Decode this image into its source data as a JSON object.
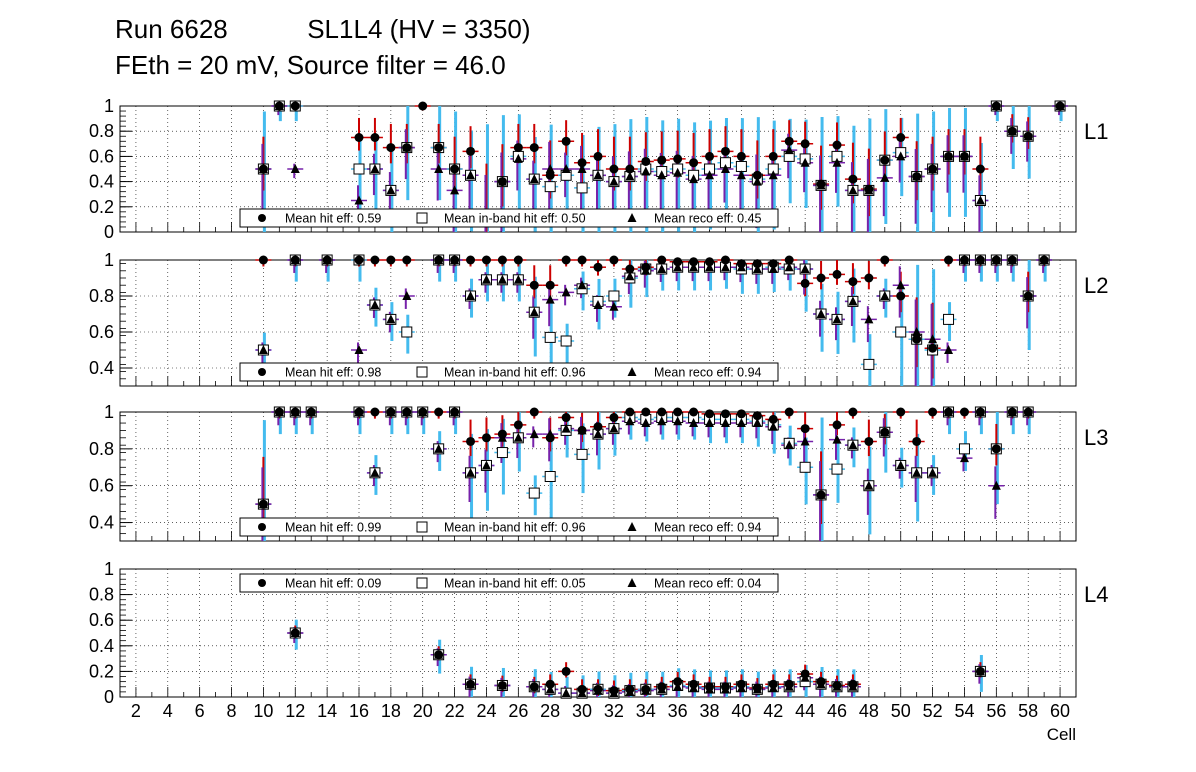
{
  "title": {
    "line1": "Run 6628           SL1L4 (HV = 3350)",
    "line2": "FEth = 20 mV, Source filter = 46.0"
  },
  "colors": {
    "hit": "#000000",
    "inband": "#ffffff",
    "reco": "#000000",
    "hit_err": "#cc0000",
    "inband_err": "#44bbee",
    "reco_err": "#7722aa"
  },
  "chart_data": [
    {
      "type": "scatter",
      "panel": "L1",
      "xlim": [
        1,
        61
      ],
      "ylim": [
        0,
        1
      ],
      "yticks": [
        0,
        0.2,
        0.4,
        0.6,
        0.8,
        1
      ],
      "grid": true,
      "legend": {
        "hit": "Mean hit  eff: 0.59",
        "inband": "Mean in-band hit eff: 0.50",
        "reco": "Mean reco eff: 0.45"
      },
      "cells": [
        10,
        11,
        12,
        16,
        17,
        18,
        19,
        20,
        21,
        22,
        23,
        24,
        25,
        26,
        27,
        28,
        29,
        30,
        31,
        32,
        33,
        34,
        35,
        36,
        37,
        38,
        39,
        40,
        41,
        42,
        43,
        44,
        45,
        46,
        47,
        48,
        49,
        50,
        51,
        52,
        53,
        54,
        55,
        56,
        57,
        58,
        60
      ],
      "series": [
        {
          "name": "Mean hit  eff",
          "values": [
            0.5,
            1,
            1,
            0.75,
            0.75,
            0.67,
            0.67,
            1,
            0.67,
            0.5,
            0.64,
            0.14,
            0.4,
            0.67,
            0.67,
            0.45,
            0.72,
            0.55,
            0.6,
            0.5,
            0.5,
            0.56,
            0.57,
            0.58,
            0.55,
            0.6,
            0.64,
            0.6,
            0.45,
            0.6,
            0.72,
            0.7,
            0.38,
            0.69,
            0.42,
            0.34,
            0.57,
            0.75,
            0.44,
            0.5,
            0.6,
            0.6,
            0.5,
            1,
            0.8,
            0.76,
            1
          ]
        },
        {
          "name": "Mean in-band hit eff",
          "values": [
            0.5,
            1,
            1,
            0.5,
            0.5,
            0.33,
            0.67,
            null,
            0.67,
            0.5,
            0.45,
            0.14,
            0.4,
            0.6,
            0.42,
            0.36,
            0.45,
            0.35,
            0.45,
            0.4,
            0.44,
            0.5,
            0.48,
            0.5,
            0.45,
            0.5,
            0.55,
            0.52,
            0.42,
            0.5,
            0.6,
            0.58,
            0.37,
            0.6,
            0.33,
            0.33,
            0.57,
            0.63,
            0.44,
            0.5,
            0.6,
            0.6,
            0.25,
            1,
            0.8,
            0.76,
            1
          ]
        },
        {
          "name": "Mean reco eff",
          "values": [
            0.5,
            1,
            0.5,
            0.25,
            0.5,
            0.33,
            0.67,
            null,
            0.5,
            0.33,
            0.45,
            0.14,
            0.4,
            0.58,
            0.42,
            0.5,
            0.5,
            0.5,
            0.45,
            0.4,
            0.44,
            0.48,
            0.45,
            0.47,
            0.42,
            0.45,
            0.5,
            0.45,
            0.4,
            0.45,
            0.65,
            0.55,
            0.37,
            0.55,
            0.33,
            0.33,
            0.43,
            0.6,
            0.44,
            0.5,
            0.6,
            0.6,
            0.25,
            1,
            0.8,
            0.76,
            1
          ]
        }
      ]
    },
    {
      "type": "scatter",
      "panel": "L2",
      "xlim": [
        1,
        61
      ],
      "ylim": [
        0.3,
        1
      ],
      "yticks": [
        0.4,
        0.6,
        0.8,
        1
      ],
      "grid": true,
      "legend": {
        "hit": "Mean hit  eff: 0.98",
        "inband": "Mean in-band hit eff: 0.96",
        "reco": "Mean reco eff: 0.94"
      },
      "cells": [
        10,
        12,
        14,
        16,
        17,
        18,
        19,
        21,
        22,
        23,
        24,
        25,
        26,
        27,
        28,
        29,
        30,
        31,
        32,
        33,
        34,
        35,
        36,
        37,
        38,
        39,
        40,
        41,
        42,
        43,
        44,
        45,
        46,
        47,
        48,
        49,
        50,
        51,
        52,
        53,
        54,
        55,
        56,
        57,
        58,
        59
      ],
      "series": [
        {
          "name": "Mean hit  eff",
          "values": [
            1,
            1,
            1,
            1,
            1,
            1,
            1,
            1,
            1,
            1,
            1,
            1,
            1,
            0.86,
            0.86,
            1,
            1,
            0.96,
            1,
            0.95,
            0.96,
            1,
            0.99,
            0.99,
            0.99,
            1,
            0.98,
            0.98,
            0.98,
            1,
            0.87,
            0.9,
            0.92,
            0.88,
            0.9,
            1,
            0.8,
            0.56,
            0.51,
            1,
            1,
            1,
            1,
            1,
            0.8,
            1
          ]
        },
        {
          "name": "Mean in-band hit eff",
          "values": [
            0.5,
            1,
            1,
            1,
            0.75,
            0.67,
            0.6,
            1,
            1,
            0.8,
            0.89,
            0.89,
            0.89,
            0.71,
            0.57,
            0.55,
            0.84,
            0.77,
            0.8,
            0.9,
            0.95,
            0.95,
            0.96,
            0.96,
            0.96,
            0.96,
            0.95,
            0.95,
            0.96,
            0.95,
            0.95,
            0.7,
            0.67,
            0.77,
            0.42,
            0.8,
            0.6,
            0.56,
            0.5,
            0.67,
            1,
            1,
            1,
            1,
            0.8,
            1
          ]
        },
        {
          "name": "Mean reco eff",
          "values": [
            0.5,
            1,
            1,
            0.5,
            0.75,
            0.67,
            0.8,
            1,
            1,
            0.8,
            0.89,
            0.89,
            0.89,
            0.71,
            0.78,
            0.82,
            0.86,
            0.75,
            0.74,
            0.91,
            0.94,
            0.95,
            0.96,
            0.96,
            0.96,
            0.96,
            0.96,
            0.95,
            0.95,
            0.96,
            0.95,
            0.7,
            0.67,
            0.77,
            0.67,
            0.8,
            0.86,
            0.6,
            0.56,
            0.5,
            1,
            1,
            1,
            1,
            0.8,
            1
          ]
        }
      ]
    },
    {
      "type": "scatter",
      "panel": "L3",
      "xlim": [
        1,
        61
      ],
      "ylim": [
        0.3,
        1
      ],
      "yticks": [
        0.4,
        0.6,
        0.8,
        1
      ],
      "grid": true,
      "legend": {
        "hit": "Mean hit  eff: 0.99",
        "inband": "Mean in-band hit eff: 0.96",
        "reco": "Mean reco eff: 0.94"
      },
      "cells": [
        10,
        11,
        12,
        13,
        16,
        17,
        18,
        19,
        20,
        21,
        22,
        23,
        24,
        25,
        26,
        27,
        28,
        29,
        30,
        31,
        32,
        33,
        34,
        35,
        36,
        37,
        38,
        39,
        40,
        41,
        42,
        43,
        44,
        45,
        46,
        47,
        48,
        49,
        50,
        51,
        52,
        53,
        54,
        55,
        56,
        57,
        58
      ],
      "series": [
        {
          "name": "Mean hit  eff",
          "values": [
            0.5,
            1,
            1,
            1,
            1,
            1,
            1,
            1,
            1,
            1,
            1,
            0.84,
            0.86,
            0.88,
            0.93,
            1,
            0.86,
            0.97,
            0.9,
            0.92,
            0.97,
            1,
            1,
            1,
            1,
            1,
            0.99,
            0.99,
            0.99,
            0.98,
            0.96,
            1,
            0.91,
            0.55,
            0.93,
            1,
            0.84,
            0.89,
            1,
            0.84,
            1,
            1,
            1,
            1,
            0.8,
            1,
            1
          ]
        },
        {
          "name": "Mean in-band hit eff",
          "values": [
            0.5,
            1,
            1,
            1,
            1,
            0.67,
            1,
            1,
            1,
            0.8,
            1,
            0.67,
            0.71,
            0.78,
            0.86,
            0.56,
            0.65,
            0.9,
            0.77,
            0.88,
            0.91,
            0.97,
            0.96,
            0.97,
            0.97,
            0.97,
            0.96,
            0.96,
            0.96,
            0.95,
            0.93,
            0.83,
            0.7,
            0.55,
            0.69,
            0.82,
            0.6,
            0.89,
            0.71,
            0.67,
            0.67,
            1,
            0.8,
            1,
            0.8,
            1,
            1
          ]
        },
        {
          "name": "Mean reco eff",
          "values": [
            0.5,
            1,
            1,
            1,
            1,
            0.67,
            1,
            1,
            1,
            0.8,
            1,
            0.67,
            0.71,
            0.86,
            0.86,
            0.88,
            0.88,
            0.91,
            0.9,
            0.88,
            0.91,
            0.95,
            0.94,
            0.95,
            0.95,
            0.94,
            0.94,
            0.94,
            0.94,
            0.94,
            0.92,
            0.82,
            0.84,
            0.55,
            0.85,
            0.82,
            0.6,
            0.89,
            0.71,
            0.67,
            0.67,
            1,
            0.75,
            1,
            0.6,
            1,
            1
          ]
        }
      ]
    },
    {
      "type": "scatter",
      "panel": "L4",
      "xlim": [
        1,
        61
      ],
      "ylim": [
        0,
        1
      ],
      "yticks": [
        0,
        0.2,
        0.4,
        0.6,
        0.8,
        1
      ],
      "xticks": [
        2,
        4,
        6,
        8,
        10,
        12,
        14,
        16,
        18,
        20,
        22,
        24,
        26,
        28,
        30,
        32,
        34,
        36,
        38,
        40,
        42,
        44,
        46,
        48,
        50,
        52,
        54,
        56,
        58,
        60
      ],
      "xlabel": "Cell",
      "grid": true,
      "legend": {
        "hit": "Mean hit  eff: 0.09",
        "inband": "Mean in-band hit eff: 0.05",
        "reco": "Mean reco eff: 0.04"
      },
      "cells": [
        12,
        21,
        23,
        25,
        27,
        28,
        29,
        30,
        31,
        32,
        33,
        34,
        35,
        36,
        37,
        38,
        39,
        40,
        41,
        42,
        43,
        44,
        45,
        46,
        47,
        55
      ],
      "series": [
        {
          "name": "Mean hit  eff",
          "values": [
            0.5,
            0.33,
            0.1,
            0.09,
            0.08,
            0.1,
            0.2,
            0.06,
            0.06,
            0.05,
            0.06,
            0.06,
            0.08,
            0.12,
            0.1,
            0.08,
            0.08,
            0.1,
            0.07,
            0.1,
            0.1,
            0.18,
            0.12,
            0.09,
            0.1,
            0.2
          ]
        },
        {
          "name": "Mean in-band hit eff",
          "values": [
            0.5,
            0.33,
            0.1,
            0.09,
            0.08,
            0.06,
            0.03,
            0.03,
            0.06,
            0.03,
            0.05,
            0.06,
            0.06,
            0.09,
            0.08,
            0.07,
            0.07,
            0.08,
            0.06,
            0.08,
            0.08,
            0.12,
            0.1,
            0.08,
            0.08,
            0.2
          ]
        },
        {
          "name": "Mean reco eff",
          "values": [
            0.5,
            0.33,
            0.1,
            0.09,
            0.08,
            0.06,
            0.03,
            0.03,
            0.05,
            0.03,
            0.04,
            0.05,
            0.06,
            0.08,
            0.07,
            0.06,
            0.06,
            0.07,
            0.06,
            0.07,
            0.08,
            0.15,
            0.1,
            0.08,
            0.08,
            0.2
          ]
        }
      ]
    }
  ],
  "panel_labels": [
    "L1",
    "L2",
    "L3",
    "L4"
  ]
}
